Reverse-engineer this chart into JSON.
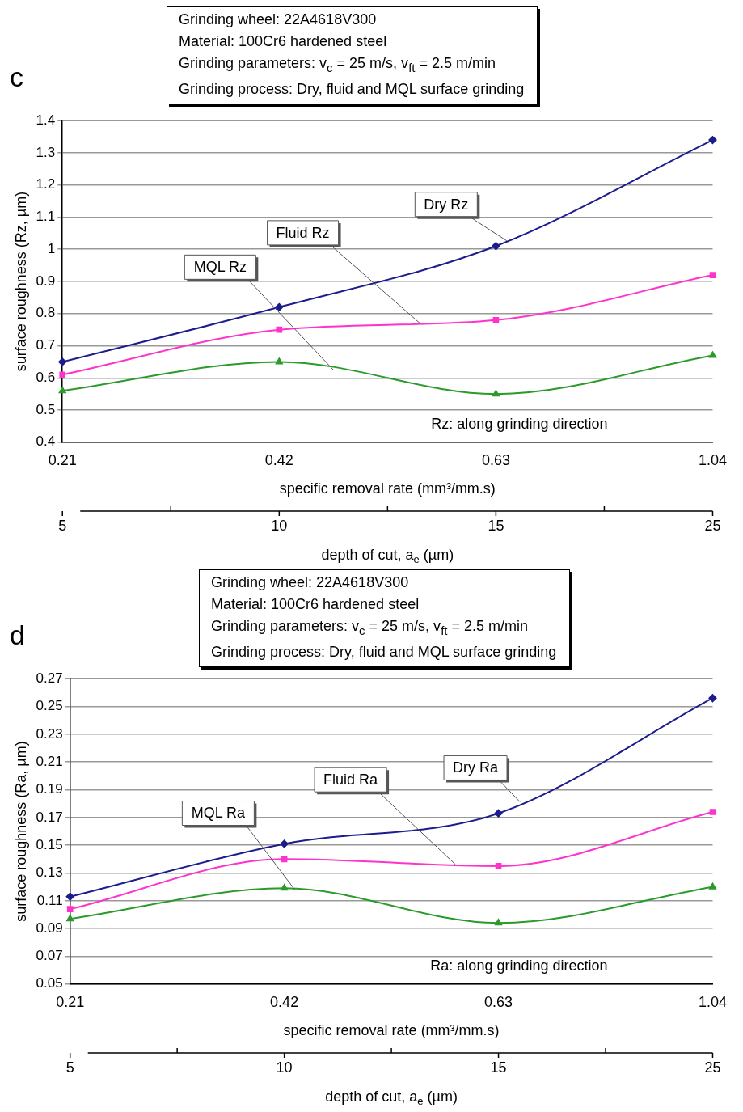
{
  "chart_data": [
    {
      "type": "line",
      "title": "c",
      "annotations": [
        "Grinding wheel: 22A4618V300",
        "Material: 100Cr6 hardened steel",
        "Grinding parameters: v$_{c}$ = 25 m/s, v$_{ft}$ = 2.5 m/min",
        "Grinding process: Dry, fluid and MQL surface grinding",
        "Rz: along grinding direction",
        {
          "text": "5",
          "x": "0.21"
        },
        {
          "text": "10",
          "x": "0.42"
        },
        {
          "text": "15",
          "x": "0.63"
        },
        {
          "text": "25",
          "x": "1.04"
        }
      ],
      "categories": [
        "0.21",
        "0.42",
        "0.63",
        "1.04"
      ],
      "xlabel": "specific removal rate (mm³/mm.s)",
      "x2label": "depth of cut, a$_{e}$ (µm)",
      "ylabel": "surface roughness (Rz, µm)",
      "ylim": [
        0.4,
        1.4
      ],
      "yticks": [
        0.4,
        0.5,
        0.6,
        0.7,
        0.8,
        0.9,
        1,
        1.1,
        1.2,
        1.3,
        1.4
      ],
      "grid": "y",
      "series": [
        {
          "name": "Dry Rz",
          "color": "#1c1c8c",
          "marker": "diamond",
          "values": [
            0.65,
            0.82,
            1.01,
            1.34
          ]
        },
        {
          "name": "Fluid Rz",
          "color": "#ff33cc",
          "marker": "square",
          "values": [
            0.61,
            0.75,
            0.78,
            0.92
          ]
        },
        {
          "name": "MQL Rz",
          "color": "#2a9a2a",
          "marker": "triangle",
          "values": [
            0.56,
            0.65,
            0.55,
            0.67
          ]
        }
      ]
    },
    {
      "type": "line",
      "title": "d",
      "annotations": [
        "Grinding wheel: 22A4618V300",
        "Material: 100Cr6 hardened steel",
        "Grinding parameters: v$_{c}$ = 25 m/s, v$_{ft}$ = 2.5 m/min",
        "Grinding process: Dry, fluid and MQL surface grinding",
        "Ra: along grinding direction",
        {
          "text": "5",
          "x": "0.21"
        },
        {
          "text": "10",
          "x": "0.42"
        },
        {
          "text": "15",
          "x": "0.63"
        },
        {
          "text": "25",
          "x": "1.04"
        }
      ],
      "categories": [
        "0.21",
        "0.42",
        "0.63",
        "1.04"
      ],
      "xlabel": "specific removal rate (mm³/mm.s)",
      "x2label": "depth of cut, a$_{e}$ (µm)",
      "ylabel": "surface roughness (Ra, µm)",
      "ylim": [
        0.05,
        0.27
      ],
      "yticks": [
        0.05,
        0.07,
        0.09,
        0.11,
        0.13,
        0.15,
        0.17,
        0.19,
        0.21,
        0.23,
        0.25,
        0.27
      ],
      "grid": "y",
      "series": [
        {
          "name": "Dry Ra",
          "color": "#1c1c8c",
          "marker": "diamond",
          "values": [
            0.113,
            0.151,
            0.173,
            0.256
          ]
        },
        {
          "name": "Fluid Ra",
          "color": "#ff33cc",
          "marker": "square",
          "values": [
            0.104,
            0.14,
            0.135,
            0.174
          ]
        },
        {
          "name": "MQL Ra",
          "color": "#2a9a2a",
          "marker": "triangle",
          "values": [
            0.097,
            0.119,
            0.094,
            0.12
          ]
        }
      ]
    }
  ]
}
